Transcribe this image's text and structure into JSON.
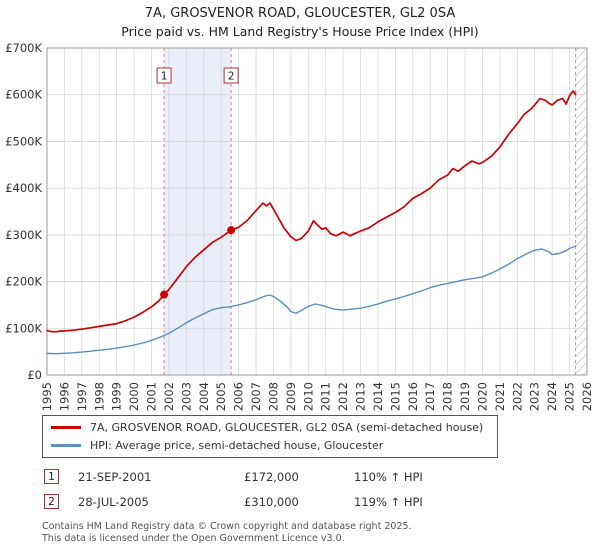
{
  "title": "7A, GROSVENOR ROAD, GLOUCESTER, GL2 0SA",
  "subtitle": "Price paid vs. HM Land Registry's House Price Index (HPI)",
  "chart_data": {
    "type": "line",
    "x_axis": {
      "min": 1995,
      "max": 2026,
      "years": [
        1995,
        1996,
        1997,
        1998,
        1999,
        2000,
        2001,
        2002,
        2003,
        2004,
        2005,
        2006,
        2007,
        2008,
        2009,
        2010,
        2011,
        2012,
        2013,
        2014,
        2015,
        2016,
        2017,
        2018,
        2019,
        2020,
        2021,
        2022,
        2023,
        2024,
        2025,
        2026
      ]
    },
    "y_axis": {
      "min": 0,
      "max": 700000,
      "ticks": [
        {
          "value": 0,
          "label": "£0"
        },
        {
          "value": 100000,
          "label": "£100K"
        },
        {
          "value": 200000,
          "label": "£200K"
        },
        {
          "value": 300000,
          "label": "£300K"
        },
        {
          "value": 400000,
          "label": "£400K"
        },
        {
          "value": 500000,
          "label": "£500K"
        },
        {
          "value": 600000,
          "label": "£600K"
        },
        {
          "value": 700000,
          "label": "£700K"
        }
      ]
    },
    "grid": true,
    "legend_position": "bottom",
    "shaded_region": {
      "from": 2001.72,
      "to": 2005.57
    },
    "hatched_region": {
      "from": 2025.35,
      "to": 2026
    },
    "markers": [
      {
        "label": "1",
        "x": 2001.72,
        "y": 172000
      },
      {
        "label": "2",
        "x": 2005.57,
        "y": 310000
      }
    ],
    "series": [
      {
        "key": "price-line",
        "name": "7A, GROSVENOR ROAD, GLOUCESTER, GL2 0SA (semi-detached house)",
        "color": "#cc0000",
        "width": 1.7,
        "points": [
          [
            1995.0,
            95000
          ],
          [
            1995.25,
            93000
          ],
          [
            1995.5,
            92500
          ],
          [
            1995.75,
            94000
          ],
          [
            1996.0,
            94500
          ],
          [
            1996.5,
            96000
          ],
          [
            1997.0,
            98000
          ],
          [
            1997.5,
            101000
          ],
          [
            1998.0,
            104000
          ],
          [
            1998.5,
            107000
          ],
          [
            1999.0,
            110000
          ],
          [
            1999.5,
            116000
          ],
          [
            2000.0,
            124000
          ],
          [
            2000.5,
            134000
          ],
          [
            2001.0,
            146000
          ],
          [
            2001.4,
            158000
          ],
          [
            2001.72,
            172000
          ],
          [
            2002.0,
            183000
          ],
          [
            2002.5,
            207000
          ],
          [
            2003.0,
            232000
          ],
          [
            2003.5,
            252000
          ],
          [
            2004.0,
            268000
          ],
          [
            2004.5,
            284000
          ],
          [
            2005.0,
            295000
          ],
          [
            2005.57,
            310000
          ],
          [
            2006.0,
            316000
          ],
          [
            2006.5,
            331000
          ],
          [
            2007.0,
            352000
          ],
          [
            2007.4,
            368000
          ],
          [
            2007.6,
            362000
          ],
          [
            2007.8,
            368000
          ],
          [
            2008.0,
            355000
          ],
          [
            2008.3,
            335000
          ],
          [
            2008.6,
            315000
          ],
          [
            2009.0,
            296000
          ],
          [
            2009.3,
            288000
          ],
          [
            2009.6,
            292000
          ],
          [
            2010.0,
            308000
          ],
          [
            2010.3,
            330000
          ],
          [
            2010.5,
            322000
          ],
          [
            2010.8,
            312000
          ],
          [
            2011.0,
            315000
          ],
          [
            2011.3,
            302000
          ],
          [
            2011.6,
            298000
          ],
          [
            2012.0,
            306000
          ],
          [
            2012.4,
            298000
          ],
          [
            2012.8,
            305000
          ],
          [
            2013.0,
            308000
          ],
          [
            2013.5,
            315000
          ],
          [
            2014.0,
            328000
          ],
          [
            2014.5,
            338000
          ],
          [
            2015.0,
            348000
          ],
          [
            2015.5,
            360000
          ],
          [
            2016.0,
            378000
          ],
          [
            2016.5,
            388000
          ],
          [
            2017.0,
            400000
          ],
          [
            2017.5,
            418000
          ],
          [
            2018.0,
            428000
          ],
          [
            2018.3,
            442000
          ],
          [
            2018.6,
            436000
          ],
          [
            2019.0,
            448000
          ],
          [
            2019.4,
            458000
          ],
          [
            2019.8,
            452000
          ],
          [
            2020.0,
            455000
          ],
          [
            2020.5,
            468000
          ],
          [
            2021.0,
            488000
          ],
          [
            2021.5,
            515000
          ],
          [
            2022.0,
            538000
          ],
          [
            2022.4,
            558000
          ],
          [
            2022.8,
            570000
          ],
          [
            2023.0,
            578000
          ],
          [
            2023.3,
            592000
          ],
          [
            2023.6,
            588000
          ],
          [
            2023.8,
            582000
          ],
          [
            2024.0,
            578000
          ],
          [
            2024.3,
            588000
          ],
          [
            2024.6,
            592000
          ],
          [
            2024.8,
            580000
          ],
          [
            2025.0,
            598000
          ],
          [
            2025.2,
            608000
          ],
          [
            2025.35,
            600000
          ]
        ]
      },
      {
        "key": "hpi-line",
        "name": "HPI: Average price, semi-detached house, Gloucester",
        "color": "#5b8ebc",
        "width": 1.4,
        "points": [
          [
            1995.0,
            46000
          ],
          [
            1995.5,
            45500
          ],
          [
            1996.0,
            46500
          ],
          [
            1996.5,
            47500
          ],
          [
            1997.0,
            49000
          ],
          [
            1997.5,
            51000
          ],
          [
            1998.0,
            53000
          ],
          [
            1998.5,
            55000
          ],
          [
            1999.0,
            57500
          ],
          [
            1999.5,
            60500
          ],
          [
            2000.0,
            64000
          ],
          [
            2000.5,
            68500
          ],
          [
            2001.0,
            74000
          ],
          [
            2001.5,
            81000
          ],
          [
            2002.0,
            89000
          ],
          [
            2002.5,
            100000
          ],
          [
            2003.0,
            112000
          ],
          [
            2003.5,
            122000
          ],
          [
            2004.0,
            131000
          ],
          [
            2004.5,
            140000
          ],
          [
            2005.0,
            144000
          ],
          [
            2005.5,
            146000
          ],
          [
            2006.0,
            150000
          ],
          [
            2006.5,
            155000
          ],
          [
            2007.0,
            161000
          ],
          [
            2007.5,
            169000
          ],
          [
            2007.8,
            171000
          ],
          [
            2008.0,
            168000
          ],
          [
            2008.4,
            158000
          ],
          [
            2008.8,
            145000
          ],
          [
            2009.0,
            136000
          ],
          [
            2009.3,
            132000
          ],
          [
            2009.6,
            138000
          ],
          [
            2010.0,
            147000
          ],
          [
            2010.4,
            152000
          ],
          [
            2010.8,
            149000
          ],
          [
            2011.0,
            146000
          ],
          [
            2011.5,
            141000
          ],
          [
            2012.0,
            139000
          ],
          [
            2012.5,
            141000
          ],
          [
            2013.0,
            143000
          ],
          [
            2013.5,
            147000
          ],
          [
            2014.0,
            152000
          ],
          [
            2014.5,
            158000
          ],
          [
            2015.0,
            163000
          ],
          [
            2015.5,
            168000
          ],
          [
            2016.0,
            174000
          ],
          [
            2016.5,
            180000
          ],
          [
            2017.0,
            187000
          ],
          [
            2017.5,
            192000
          ],
          [
            2018.0,
            196000
          ],
          [
            2018.5,
            200000
          ],
          [
            2019.0,
            204000
          ],
          [
            2019.5,
            207000
          ],
          [
            2020.0,
            210000
          ],
          [
            2020.5,
            218000
          ],
          [
            2021.0,
            227000
          ],
          [
            2021.5,
            237000
          ],
          [
            2022.0,
            249000
          ],
          [
            2022.5,
            259000
          ],
          [
            2023.0,
            267000
          ],
          [
            2023.4,
            270000
          ],
          [
            2023.8,
            264000
          ],
          [
            2024.0,
            258000
          ],
          [
            2024.4,
            260000
          ],
          [
            2024.8,
            266000
          ],
          [
            2025.0,
            271000
          ],
          [
            2025.35,
            276000
          ]
        ]
      }
    ],
    "accent_colors": {
      "marker_line": "#e08080",
      "marker_box_border": "#aa3333",
      "grid": "#d4d4d4",
      "frame": "#999999",
      "shaded_band": "#e9eef9"
    }
  },
  "legend": {
    "items": [
      {
        "label": "7A, GROSVENOR ROAD, GLOUCESTER, GL2 0SA (semi-detached house)"
      },
      {
        "label": "HPI: Average price, semi-detached house, Gloucester"
      }
    ]
  },
  "transactions": [
    {
      "num": "1",
      "date": "21-SEP-2001",
      "price": "£172,000",
      "hpi": "110% ↑ HPI"
    },
    {
      "num": "2",
      "date": "28-JUL-2005",
      "price": "£310,000",
      "hpi": "119% ↑ HPI"
    }
  ],
  "footer": {
    "line1": "Contains HM Land Registry data © Crown copyright and database right 2025.",
    "line2": "This data is licensed under the Open Government Licence v3.0."
  }
}
